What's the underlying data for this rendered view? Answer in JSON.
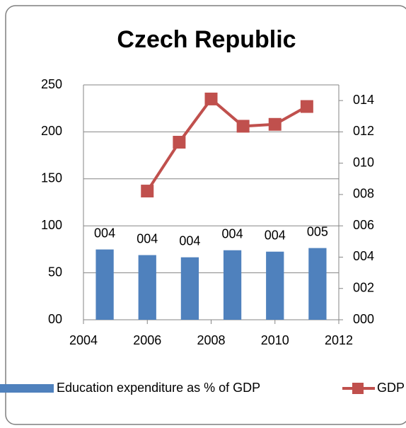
{
  "chart_data": {
    "type": "combo",
    "title": "Czech Republic",
    "xlim": [
      2004,
      2012
    ],
    "xticks": [
      2004,
      2006,
      2008,
      2010,
      2012
    ],
    "ylim": [
      0,
      250
    ],
    "yticks": [
      {
        "value": 0,
        "label": "00"
      },
      50,
      100,
      150,
      200,
      250
    ],
    "y2lim": [
      0,
      15
    ],
    "y2ticks": [
      {
        "value": 0,
        "label": "000"
      },
      {
        "value": 2,
        "label": "002"
      },
      {
        "value": 4,
        "label": "004"
      },
      {
        "value": 6,
        "label": "006"
      },
      {
        "value": 8,
        "label": "008"
      },
      {
        "value": 10,
        "label": "010"
      },
      {
        "value": 12,
        "label": "012"
      },
      {
        "value": 14,
        "label": "014"
      }
    ],
    "grid": true,
    "series": [
      {
        "name": "Education expenditure as % of GDP",
        "type": "bar",
        "color": "#4f81bd",
        "axis": "y2",
        "values": [
          4.49,
          4.13,
          3.99,
          4.44,
          4.35,
          4.58
        ],
        "value_labels": [
          "004",
          "004",
          "004",
          "004",
          "004",
          "005"
        ]
      },
      {
        "name": "GDP",
        "type": "line",
        "color": "#c0504d",
        "x": [
          2006,
          2007,
          2008,
          2009,
          2010,
          2011
        ],
        "values": [
          137,
          189,
          235,
          206,
          208,
          227
        ]
      }
    ]
  }
}
